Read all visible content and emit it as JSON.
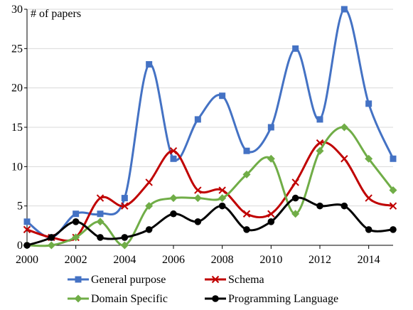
{
  "chart_data": {
    "type": "line",
    "title": "",
    "ylabel": "# of papers",
    "xlabel": "",
    "x": [
      2000,
      2001,
      2002,
      2003,
      2004,
      2005,
      2006,
      2007,
      2008,
      2009,
      2010,
      2011,
      2012,
      2013,
      2014,
      2015
    ],
    "xlim": [
      2000,
      2015
    ],
    "ylim": [
      0,
      30
    ],
    "xticks": [
      2000,
      2002,
      2004,
      2006,
      2008,
      2010,
      2012,
      2014
    ],
    "yticks": [
      0,
      5,
      10,
      15,
      20,
      25,
      30
    ],
    "grid": "horizontal",
    "smooth": true,
    "legend_position": "bottom",
    "series": [
      {
        "name": "General purpose",
        "color": "#4472C4",
        "marker": "square",
        "values": [
          3,
          1,
          4,
          4,
          6,
          23,
          11,
          16,
          19,
          12,
          15,
          25,
          16,
          30,
          18,
          11
        ]
      },
      {
        "name": "Schema",
        "color": "#C00000",
        "marker": "x",
        "values": [
          2,
          1,
          1,
          6,
          5,
          8,
          12,
          7,
          7,
          4,
          4,
          8,
          13,
          11,
          6,
          5
        ]
      },
      {
        "name": "Domain Specific",
        "color": "#70AD47",
        "marker": "diamond",
        "values": [
          0,
          0,
          1,
          3,
          0,
          5,
          6,
          6,
          6,
          9,
          11,
          4,
          12,
          15,
          11,
          7
        ]
      },
      {
        "name": "Programming Language",
        "color": "#000000",
        "marker": "circle",
        "values": [
          0,
          1,
          3,
          1,
          1,
          2,
          4,
          3,
          5,
          2,
          3,
          6,
          5,
          5,
          2,
          2
        ]
      }
    ]
  }
}
